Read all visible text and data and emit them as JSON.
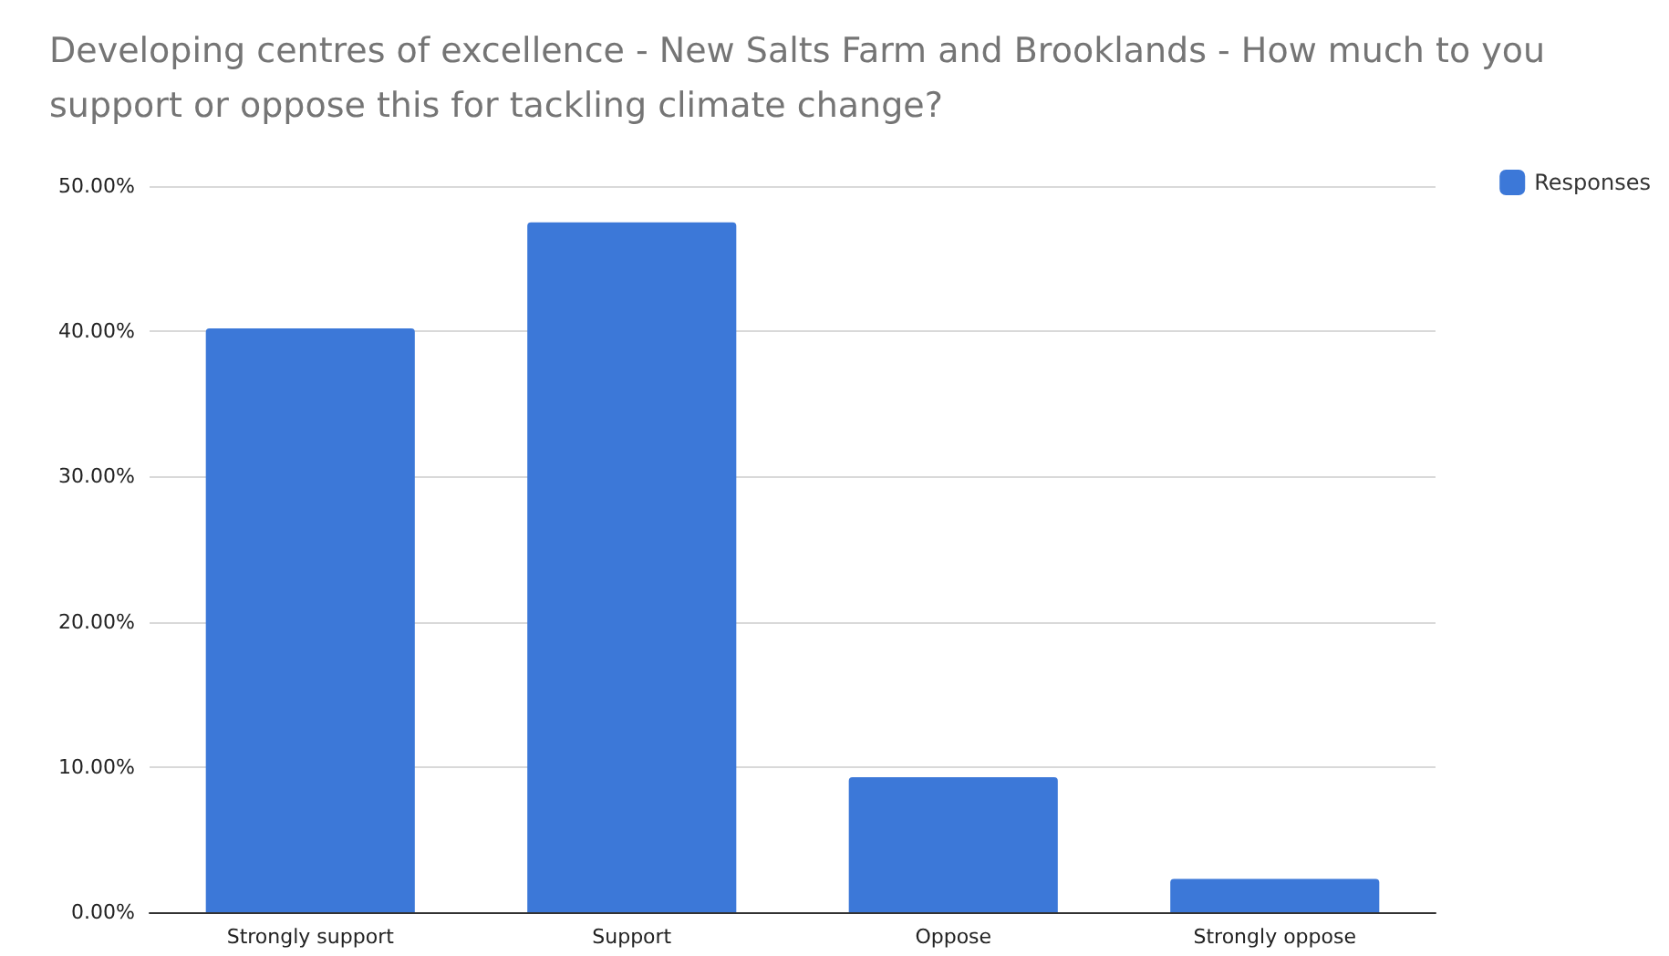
{
  "chart_data": {
    "type": "bar",
    "title": "Developing centres of excellence - New Salts Farm and Brooklands - How much to you support or oppose this for tackling climate change?",
    "categories": [
      "Strongly support",
      "Support",
      "Oppose",
      "Strongly oppose"
    ],
    "series": [
      {
        "name": "Responses",
        "color": "#3c78d8",
        "values": [
          40.2,
          47.5,
          9.3,
          2.3
        ]
      }
    ],
    "ylim": [
      0,
      50
    ],
    "yticks": [
      {
        "value": 0,
        "label": "0.00%"
      },
      {
        "value": 10,
        "label": "10.00%"
      },
      {
        "value": 20,
        "label": "20.00%"
      },
      {
        "value": 30,
        "label": "30.00%"
      },
      {
        "value": 40,
        "label": "40.00%"
      },
      {
        "value": 50,
        "label": "50.00%"
      }
    ],
    "grid": "y",
    "legend": "top right"
  }
}
